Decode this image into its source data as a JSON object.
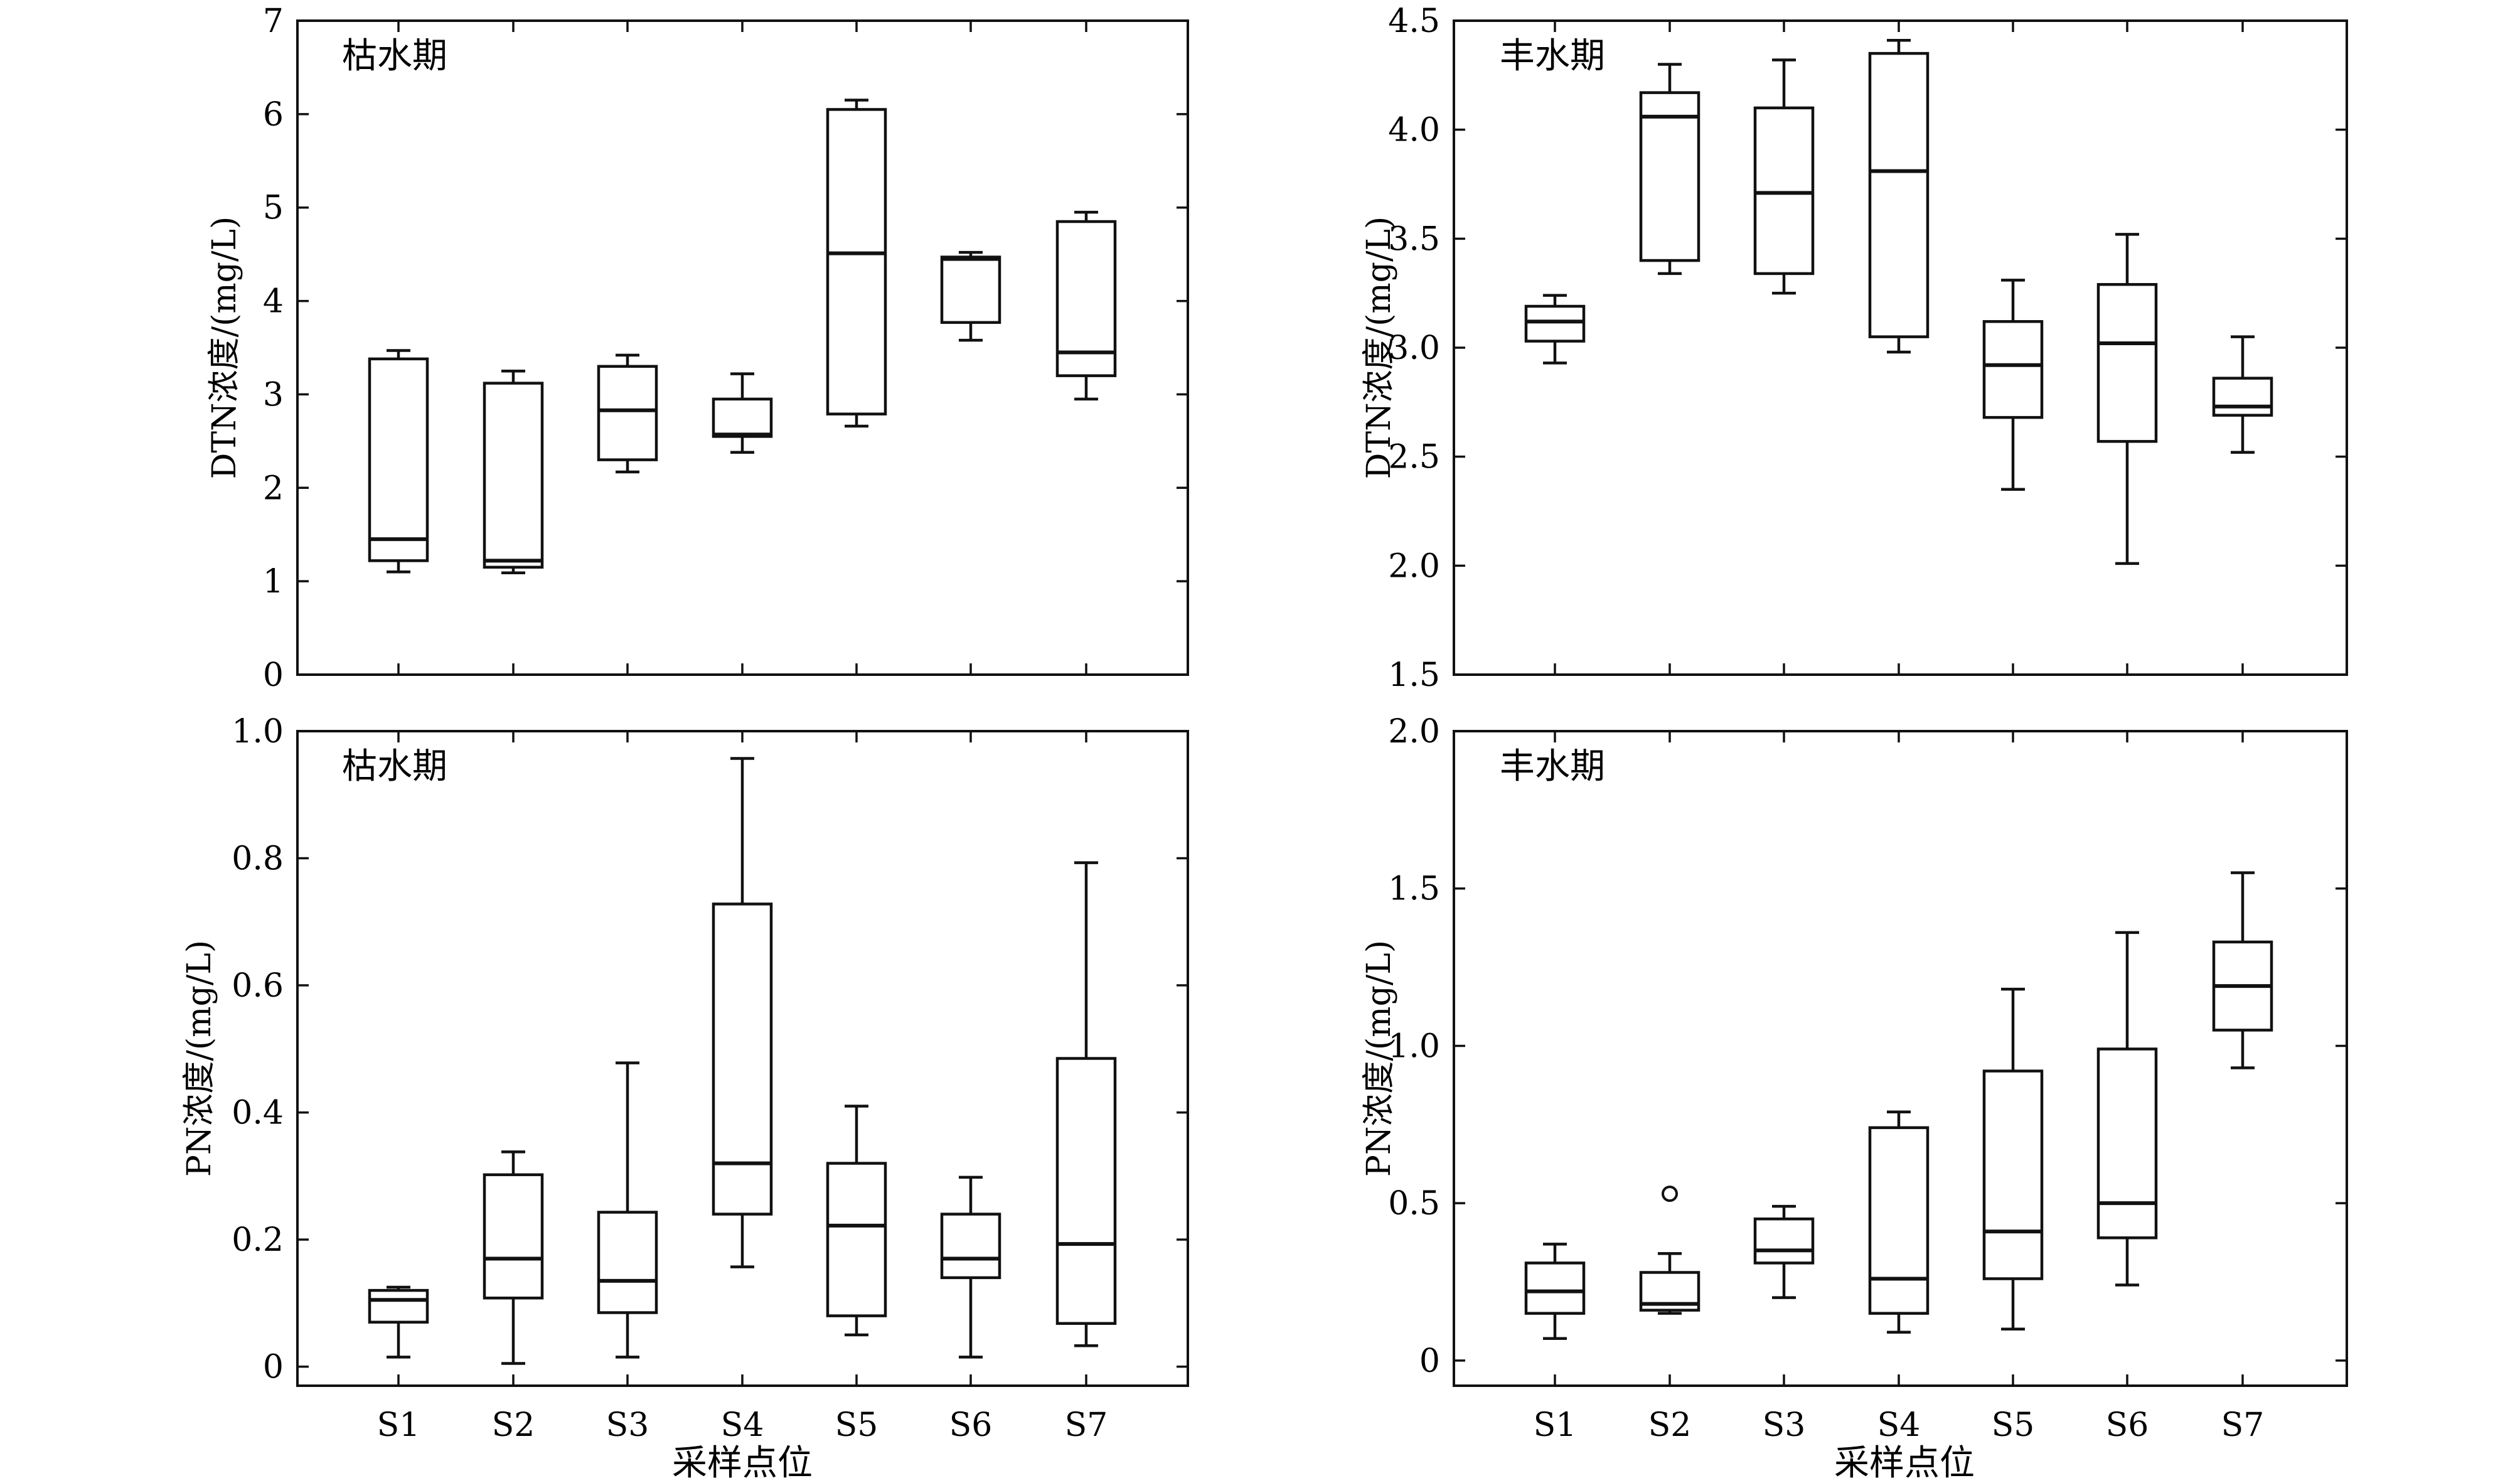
{
  "figure": {
    "x_axis_title": "采样点位",
    "categories": [
      "S1",
      "S2",
      "S3",
      "S4",
      "S5",
      "S6",
      "S7"
    ]
  },
  "chart_data": [
    {
      "type": "box",
      "title": "枯水期",
      "ylabel": "DTN浓度/(mg/L)",
      "ylim": [
        0,
        7
      ],
      "yticks": [
        "0",
        "1",
        "2",
        "3",
        "4",
        "5",
        "6",
        "7"
      ],
      "categories": [
        "S1",
        "S2",
        "S3",
        "S4",
        "S5",
        "S6",
        "S7"
      ],
      "boxes": [
        {
          "min": 1.1,
          "q1": 1.22,
          "median": 1.45,
          "q3": 3.38,
          "max": 3.47
        },
        {
          "min": 1.09,
          "q1": 1.15,
          "median": 1.22,
          "q3": 3.12,
          "max": 3.25
        },
        {
          "min": 2.17,
          "q1": 2.3,
          "median": 2.83,
          "q3": 3.3,
          "max": 3.42
        },
        {
          "min": 2.38,
          "q1": 2.55,
          "median": 2.57,
          "q3": 2.95,
          "max": 3.22
        },
        {
          "min": 2.66,
          "q1": 2.79,
          "median": 4.51,
          "q3": 6.05,
          "max": 6.15
        },
        {
          "min": 3.58,
          "q1": 3.77,
          "median": 4.45,
          "q3": 4.47,
          "max": 4.52
        },
        {
          "min": 2.95,
          "q1": 3.2,
          "median": 3.45,
          "q3": 4.85,
          "max": 4.95
        }
      ]
    },
    {
      "type": "box",
      "title": "丰水期",
      "ylabel": "DTN浓度/(mg/L)",
      "ylim": [
        1.5,
        4.5
      ],
      "yticks": [
        "1.5",
        "2.0",
        "2.5",
        "3.0",
        "3.5",
        "4.0",
        "4.5"
      ],
      "categories": [
        "S1",
        "S2",
        "S3",
        "S4",
        "S5",
        "S6",
        "S7"
      ],
      "boxes": [
        {
          "min": 2.93,
          "q1": 3.03,
          "median": 3.12,
          "q3": 3.19,
          "max": 3.24
        },
        {
          "min": 3.34,
          "q1": 3.4,
          "median": 4.06,
          "q3": 4.17,
          "max": 4.3
        },
        {
          "min": 3.25,
          "q1": 3.34,
          "median": 3.71,
          "q3": 4.1,
          "max": 4.32
        },
        {
          "min": 2.98,
          "q1": 3.05,
          "median": 3.81,
          "q3": 4.35,
          "max": 4.41
        },
        {
          "min": 2.35,
          "q1": 2.68,
          "median": 2.92,
          "q3": 3.12,
          "max": 3.31
        },
        {
          "min": 2.01,
          "q1": 2.57,
          "median": 3.02,
          "q3": 3.29,
          "max": 3.52
        },
        {
          "min": 2.52,
          "q1": 2.69,
          "median": 2.73,
          "q3": 2.86,
          "max": 3.05
        }
      ]
    },
    {
      "type": "box",
      "title": "枯水期",
      "ylabel": "PN浓度/(mg/L)",
      "ylim": [
        -0.03,
        1.0
      ],
      "yticks": [
        "0",
        "0.2",
        "0.4",
        "0.6",
        "0.8",
        "1.0"
      ],
      "categories": [
        "S1",
        "S2",
        "S3",
        "S4",
        "S5",
        "S6",
        "S7"
      ],
      "boxes": [
        {
          "min": 0.015,
          "q1": 0.07,
          "median": 0.105,
          "q3": 0.12,
          "max": 0.125
        },
        {
          "min": 0.005,
          "q1": 0.108,
          "median": 0.17,
          "q3": 0.302,
          "max": 0.338
        },
        {
          "min": 0.015,
          "q1": 0.085,
          "median": 0.135,
          "q3": 0.243,
          "max": 0.478
        },
        {
          "min": 0.157,
          "q1": 0.24,
          "median": 0.32,
          "q3": 0.728,
          "max": 0.957
        },
        {
          "min": 0.05,
          "q1": 0.08,
          "median": 0.222,
          "q3": 0.32,
          "max": 0.41
        },
        {
          "min": 0.015,
          "q1": 0.14,
          "median": 0.17,
          "q3": 0.24,
          "max": 0.298
        },
        {
          "min": 0.033,
          "q1": 0.068,
          "median": 0.193,
          "q3": 0.485,
          "max": 0.793
        }
      ]
    },
    {
      "type": "box",
      "title": "丰水期",
      "ylabel": "PN浓度/(mg/L)",
      "ylim": [
        -0.08,
        2.0
      ],
      "yticks": [
        "0",
        "0.5",
        "1.0",
        "1.5",
        "2.0"
      ],
      "categories": [
        "S1",
        "S2",
        "S3",
        "S4",
        "S5",
        "S6",
        "S7"
      ],
      "boxes": [
        {
          "min": 0.07,
          "q1": 0.15,
          "median": 0.22,
          "q3": 0.31,
          "max": 0.37
        },
        {
          "min": 0.15,
          "q1": 0.16,
          "median": 0.18,
          "q3": 0.28,
          "max": 0.34,
          "outliers": [
            0.53
          ]
        },
        {
          "min": 0.2,
          "q1": 0.31,
          "median": 0.35,
          "q3": 0.45,
          "max": 0.49
        },
        {
          "min": 0.09,
          "q1": 0.15,
          "median": 0.26,
          "q3": 0.74,
          "max": 0.79
        },
        {
          "min": 0.1,
          "q1": 0.26,
          "median": 0.41,
          "q3": 0.92,
          "max": 1.18
        },
        {
          "min": 0.24,
          "q1": 0.39,
          "median": 0.5,
          "q3": 0.99,
          "max": 1.36
        },
        {
          "min": 0.93,
          "q1": 1.05,
          "median": 1.19,
          "q3": 1.33,
          "max": 1.55
        }
      ]
    }
  ]
}
